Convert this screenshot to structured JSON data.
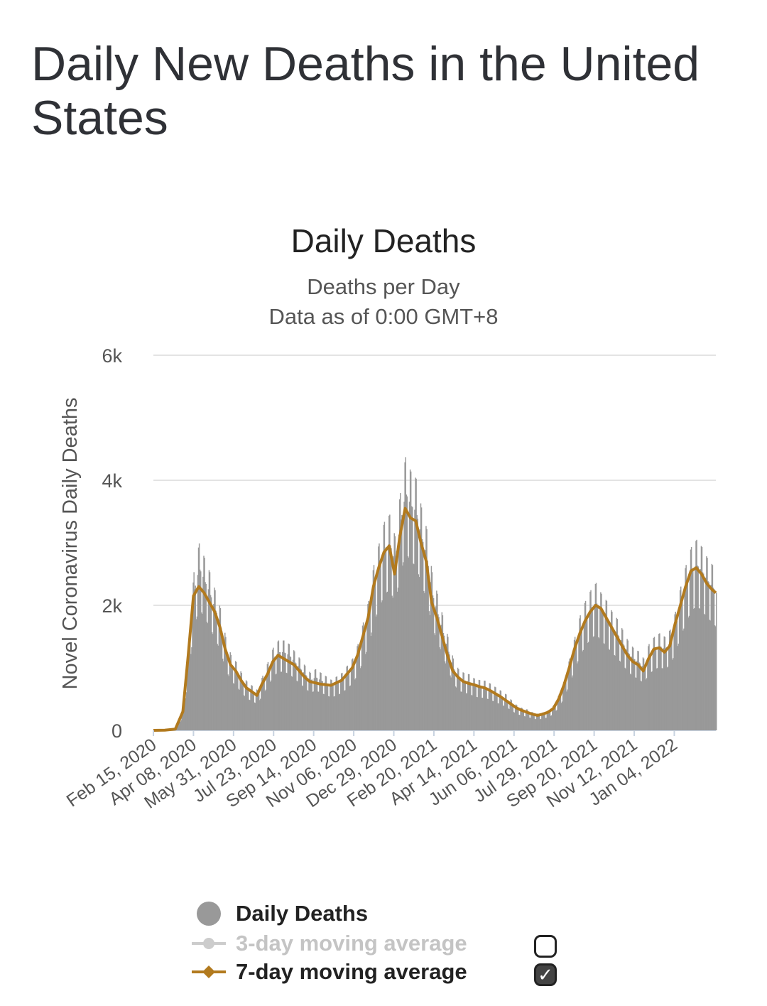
{
  "page": {
    "title": "Daily New Deaths in the United States"
  },
  "chart_data": {
    "type": "bar",
    "title": "Daily Deaths",
    "subtitle": "Deaths per Day",
    "subtitle2": "Data as of 0:00 GMT+8",
    "ylabel": "Novel Coronavirus Daily Deaths",
    "xlabel": "",
    "ylim": [
      0,
      6000
    ],
    "grid": true,
    "yticks": [
      0,
      2000,
      4000,
      6000
    ],
    "ytick_labels": [
      "0",
      "2k",
      "4k",
      "6k"
    ],
    "x_start": "Feb 15, 2020",
    "x_end": "Feb 28, 2022",
    "xtick_labels": [
      "Feb 15, 2020",
      "Apr 08, 2020",
      "May 31, 2020",
      "Jul 23, 2020",
      "Sep 14, 2020",
      "Nov 06, 2020",
      "Dec 29, 2020",
      "Feb 20, 2021",
      "Apr 14, 2021",
      "Jun 06, 2021",
      "Jul 29, 2021",
      "Sep 20, 2021",
      "Nov 12, 2021",
      "Jan 04, 2022"
    ],
    "series": [
      {
        "name": "Daily Deaths",
        "kind": "bar",
        "color": "#999999",
        "points": [
          [
            "2020-02-15",
            0
          ],
          [
            "2020-03-01",
            2
          ],
          [
            "2020-03-15",
            20
          ],
          [
            "2020-03-25",
            300
          ],
          [
            "2020-04-01",
            1200
          ],
          [
            "2020-04-08",
            2200
          ],
          [
            "2020-04-15",
            2600
          ],
          [
            "2020-04-22",
            2400
          ],
          [
            "2020-04-29",
            2200
          ],
          [
            "2020-05-06",
            1950
          ],
          [
            "2020-05-13",
            1700
          ],
          [
            "2020-05-20",
            1300
          ],
          [
            "2020-05-27",
            1050
          ],
          [
            "2020-06-03",
            950
          ],
          [
            "2020-06-10",
            800
          ],
          [
            "2020-06-17",
            680
          ],
          [
            "2020-06-24",
            620
          ],
          [
            "2020-07-01",
            560
          ],
          [
            "2020-07-08",
            760
          ],
          [
            "2020-07-15",
            950
          ],
          [
            "2020-07-22",
            1150
          ],
          [
            "2020-07-29",
            1250
          ],
          [
            "2020-08-05",
            1250
          ],
          [
            "2020-08-12",
            1200
          ],
          [
            "2020-08-19",
            1100
          ],
          [
            "2020-08-26",
            1000
          ],
          [
            "2020-09-02",
            900
          ],
          [
            "2020-09-09",
            800
          ],
          [
            "2020-09-16",
            850
          ],
          [
            "2020-09-23",
            800
          ],
          [
            "2020-09-30",
            750
          ],
          [
            "2020-10-07",
            700
          ],
          [
            "2020-10-14",
            750
          ],
          [
            "2020-10-21",
            800
          ],
          [
            "2020-10-28",
            900
          ],
          [
            "2020-11-04",
            1000
          ],
          [
            "2020-11-11",
            1200
          ],
          [
            "2020-11-18",
            1500
          ],
          [
            "2020-11-25",
            1800
          ],
          [
            "2020-12-02",
            2300
          ],
          [
            "2020-12-09",
            2600
          ],
          [
            "2020-12-16",
            2900
          ],
          [
            "2020-12-23",
            3000
          ],
          [
            "2020-12-30",
            2700
          ],
          [
            "2021-01-06",
            3300
          ],
          [
            "2021-01-13",
            3800
          ],
          [
            "2021-01-20",
            3600
          ],
          [
            "2021-01-27",
            3500
          ],
          [
            "2021-02-03",
            3100
          ],
          [
            "2021-02-10",
            2800
          ],
          [
            "2021-02-17",
            2200
          ],
          [
            "2021-02-24",
            1900
          ],
          [
            "2021-03-03",
            1600
          ],
          [
            "2021-03-10",
            1300
          ],
          [
            "2021-03-17",
            1000
          ],
          [
            "2021-03-24",
            850
          ],
          [
            "2021-03-31",
            800
          ],
          [
            "2021-04-07",
            780
          ],
          [
            "2021-04-14",
            720
          ],
          [
            "2021-04-21",
            700
          ],
          [
            "2021-04-28",
            690
          ],
          [
            "2021-05-05",
            650
          ],
          [
            "2021-05-12",
            600
          ],
          [
            "2021-05-19",
            550
          ],
          [
            "2021-05-26",
            500
          ],
          [
            "2021-06-02",
            420
          ],
          [
            "2021-06-09",
            350
          ],
          [
            "2021-06-16",
            310
          ],
          [
            "2021-06-23",
            290
          ],
          [
            "2021-06-30",
            250
          ],
          [
            "2021-07-07",
            230
          ],
          [
            "2021-07-14",
            250
          ],
          [
            "2021-07-21",
            280
          ],
          [
            "2021-07-28",
            350
          ],
          [
            "2021-08-04",
            500
          ],
          [
            "2021-08-11",
            700
          ],
          [
            "2021-08-18",
            1000
          ],
          [
            "2021-08-25",
            1300
          ],
          [
            "2021-09-01",
            1600
          ],
          [
            "2021-09-08",
            1800
          ],
          [
            "2021-09-15",
            1950
          ],
          [
            "2021-09-22",
            2050
          ],
          [
            "2021-09-29",
            1900
          ],
          [
            "2021-10-06",
            1800
          ],
          [
            "2021-10-13",
            1650
          ],
          [
            "2021-10-20",
            1550
          ],
          [
            "2021-10-27",
            1400
          ],
          [
            "2021-11-03",
            1250
          ],
          [
            "2021-11-10",
            1150
          ],
          [
            "2021-11-17",
            1100
          ],
          [
            "2021-11-24",
            1000
          ],
          [
            "2021-12-01",
            1200
          ],
          [
            "2021-12-08",
            1300
          ],
          [
            "2021-12-15",
            1350
          ],
          [
            "2021-12-22",
            1300
          ],
          [
            "2021-12-29",
            1400
          ],
          [
            "2022-01-05",
            1650
          ],
          [
            "2022-01-12",
            2000
          ],
          [
            "2022-01-19",
            2300
          ],
          [
            "2022-01-26",
            2550
          ],
          [
            "2022-02-02",
            2650
          ],
          [
            "2022-02-09",
            2550
          ],
          [
            "2022-02-16",
            2400
          ],
          [
            "2022-02-23",
            2300
          ],
          [
            "2022-02-28",
            2200
          ]
        ]
      },
      {
        "name": "3-day moving average",
        "kind": "line",
        "color": "#cccccc",
        "visible": false
      },
      {
        "name": "7-day moving average",
        "kind": "line",
        "color": "#b27a1e",
        "visible": true,
        "points": [
          [
            "2020-02-15",
            0
          ],
          [
            "2020-03-01",
            2
          ],
          [
            "2020-03-15",
            20
          ],
          [
            "2020-03-25",
            300
          ],
          [
            "2020-04-01",
            1200
          ],
          [
            "2020-04-08",
            2150
          ],
          [
            "2020-04-15",
            2300
          ],
          [
            "2020-04-22",
            2200
          ],
          [
            "2020-04-29",
            2050
          ],
          [
            "2020-05-06",
            1900
          ],
          [
            "2020-05-13",
            1650
          ],
          [
            "2020-05-20",
            1300
          ],
          [
            "2020-05-27",
            1050
          ],
          [
            "2020-06-03",
            950
          ],
          [
            "2020-06-10",
            800
          ],
          [
            "2020-06-17",
            680
          ],
          [
            "2020-06-24",
            620
          ],
          [
            "2020-07-01",
            560
          ],
          [
            "2020-07-08",
            750
          ],
          [
            "2020-07-15",
            900
          ],
          [
            "2020-07-22",
            1100
          ],
          [
            "2020-07-29",
            1200
          ],
          [
            "2020-08-05",
            1150
          ],
          [
            "2020-08-12",
            1100
          ],
          [
            "2020-08-19",
            1050
          ],
          [
            "2020-08-26",
            950
          ],
          [
            "2020-09-02",
            850
          ],
          [
            "2020-09-09",
            780
          ],
          [
            "2020-09-16",
            760
          ],
          [
            "2020-09-23",
            740
          ],
          [
            "2020-09-30",
            730
          ],
          [
            "2020-10-07",
            720
          ],
          [
            "2020-10-14",
            760
          ],
          [
            "2020-10-21",
            800
          ],
          [
            "2020-10-28",
            900
          ],
          [
            "2020-11-04",
            1000
          ],
          [
            "2020-11-11",
            1200
          ],
          [
            "2020-11-18",
            1500
          ],
          [
            "2020-11-25",
            1800
          ],
          [
            "2020-12-02",
            2300
          ],
          [
            "2020-12-09",
            2600
          ],
          [
            "2020-12-16",
            2850
          ],
          [
            "2020-12-23",
            2950
          ],
          [
            "2020-12-30",
            2500
          ],
          [
            "2021-01-06",
            3100
          ],
          [
            "2021-01-13",
            3550
          ],
          [
            "2021-01-20",
            3400
          ],
          [
            "2021-01-27",
            3350
          ],
          [
            "2021-02-03",
            3000
          ],
          [
            "2021-02-10",
            2700
          ],
          [
            "2021-02-17",
            2050
          ],
          [
            "2021-02-24",
            1800
          ],
          [
            "2021-03-03",
            1500
          ],
          [
            "2021-03-10",
            1200
          ],
          [
            "2021-03-17",
            950
          ],
          [
            "2021-03-24",
            850
          ],
          [
            "2021-03-31",
            780
          ],
          [
            "2021-04-07",
            750
          ],
          [
            "2021-04-14",
            730
          ],
          [
            "2021-04-21",
            700
          ],
          [
            "2021-04-28",
            680
          ],
          [
            "2021-05-05",
            640
          ],
          [
            "2021-05-12",
            590
          ],
          [
            "2021-05-19",
            540
          ],
          [
            "2021-05-26",
            480
          ],
          [
            "2021-06-02",
            420
          ],
          [
            "2021-06-09",
            360
          ],
          [
            "2021-06-16",
            320
          ],
          [
            "2021-06-23",
            290
          ],
          [
            "2021-06-30",
            260
          ],
          [
            "2021-07-07",
            240
          ],
          [
            "2021-07-14",
            260
          ],
          [
            "2021-07-21",
            290
          ],
          [
            "2021-07-28",
            350
          ],
          [
            "2021-08-04",
            500
          ],
          [
            "2021-08-11",
            720
          ],
          [
            "2021-08-18",
            1000
          ],
          [
            "2021-08-25",
            1300
          ],
          [
            "2021-09-01",
            1550
          ],
          [
            "2021-09-08",
            1750
          ],
          [
            "2021-09-15",
            1900
          ],
          [
            "2021-09-22",
            2000
          ],
          [
            "2021-09-29",
            1950
          ],
          [
            "2021-10-06",
            1800
          ],
          [
            "2021-10-13",
            1650
          ],
          [
            "2021-10-20",
            1500
          ],
          [
            "2021-10-27",
            1350
          ],
          [
            "2021-11-03",
            1200
          ],
          [
            "2021-11-10",
            1100
          ],
          [
            "2021-11-17",
            1050
          ],
          [
            "2021-11-24",
            950
          ],
          [
            "2021-12-01",
            1150
          ],
          [
            "2021-12-08",
            1300
          ],
          [
            "2021-12-15",
            1320
          ],
          [
            "2021-12-22",
            1250
          ],
          [
            "2021-12-29",
            1350
          ],
          [
            "2022-01-05",
            1700
          ],
          [
            "2022-01-12",
            2000
          ],
          [
            "2022-01-19",
            2300
          ],
          [
            "2022-01-26",
            2550
          ],
          [
            "2022-02-02",
            2600
          ],
          [
            "2022-02-09",
            2500
          ],
          [
            "2022-02-16",
            2350
          ],
          [
            "2022-02-23",
            2250
          ],
          [
            "2022-02-28",
            2200
          ]
        ]
      }
    ],
    "legend": {
      "placement": "bottom",
      "items": [
        {
          "label": "Daily Deaths",
          "checkbox": null
        },
        {
          "label": "3-day moving average",
          "checkbox": false
        },
        {
          "label": "7-day moving average",
          "checkbox": true
        }
      ]
    }
  }
}
